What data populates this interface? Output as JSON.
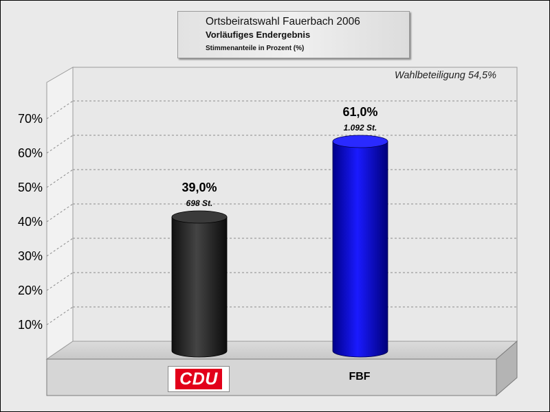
{
  "header": {
    "title": "Ortsbeiratswahl Fauerbach 2006",
    "subtitle": "Vorläufiges Endergebnis",
    "caption": "Stimmenanteile in Prozent (%)"
  },
  "annotation": "Wahlbeteiligung 54,5%",
  "chart_data": {
    "type": "bar",
    "title": "Ortsbeiratswahl Fauerbach 2006",
    "subtitle": "Vorläufiges Endergebnis",
    "ylabel": "Stimmenanteile in Prozent (%)",
    "categories": [
      "CDU",
      "FBF"
    ],
    "values": [
      39.0,
      61.0
    ],
    "value_labels": [
      "39,0%",
      "61,0%"
    ],
    "vote_labels": [
      "698 St.",
      "1.092 St."
    ],
    "colors": [
      "#2a2a2a",
      "#0a0ad8"
    ],
    "ylim": [
      0,
      70
    ],
    "y_ticks": [
      10,
      20,
      30,
      40,
      50,
      60,
      70
    ],
    "y_tick_labels": [
      "10%",
      "20%",
      "30%",
      "40%",
      "50%",
      "60%",
      "70%"
    ],
    "grid": true,
    "style": "3d-cylinder"
  }
}
